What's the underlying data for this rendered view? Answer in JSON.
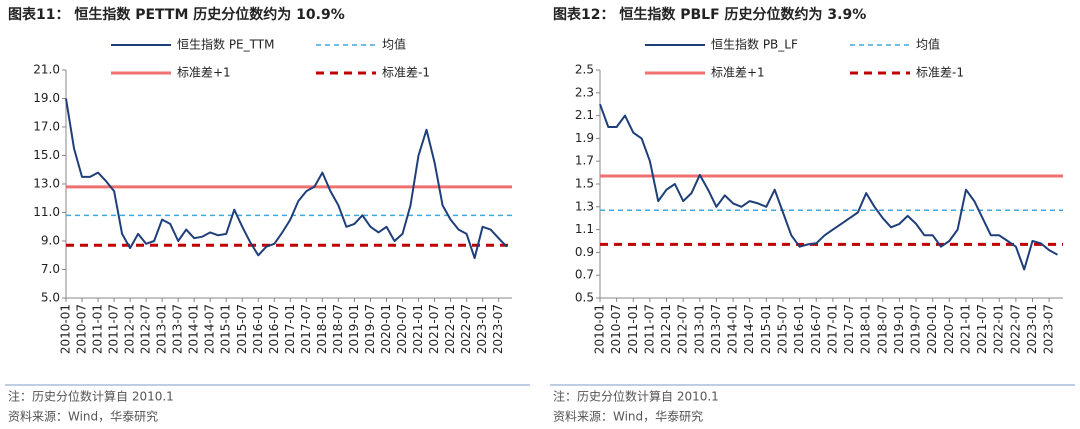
{
  "chart_data": [
    {
      "type": "line",
      "title": "图表11： 恒生指数 PETTM 历史分位数约为 10.9%",
      "notes": [
        "注：历史分位数计算自 2010.1",
        "资料来源：Wind，华泰研究"
      ],
      "x": [
        "2010-01",
        "2010-04",
        "2010-07",
        "2010-10",
        "2011-01",
        "2011-04",
        "2011-07",
        "2011-10",
        "2012-01",
        "2012-04",
        "2012-07",
        "2012-10",
        "2013-01",
        "2013-04",
        "2013-07",
        "2013-10",
        "2014-01",
        "2014-04",
        "2014-07",
        "2014-10",
        "2015-01",
        "2015-04",
        "2015-07",
        "2015-10",
        "2016-01",
        "2016-04",
        "2016-07",
        "2016-10",
        "2017-01",
        "2017-04",
        "2017-07",
        "2017-10",
        "2018-01",
        "2018-04",
        "2018-07",
        "2018-10",
        "2019-01",
        "2019-04",
        "2019-07",
        "2019-10",
        "2020-01",
        "2020-04",
        "2020-07",
        "2020-10",
        "2021-01",
        "2021-04",
        "2021-07",
        "2021-10",
        "2022-01",
        "2022-04",
        "2022-07",
        "2022-10",
        "2023-01",
        "2023-04",
        "2023-07",
        "2023-10"
      ],
      "series": [
        {
          "name": "恒生指数 PE_TTM",
          "color": "#1f3f7a",
          "values": [
            19.0,
            15.5,
            13.5,
            13.5,
            13.8,
            13.2,
            12.5,
            9.5,
            8.5,
            9.5,
            8.8,
            9.0,
            10.5,
            10.2,
            9.0,
            9.8,
            9.2,
            9.3,
            9.6,
            9.4,
            9.5,
            11.2,
            10.0,
            8.9,
            8.0,
            8.6,
            8.8,
            9.6,
            10.5,
            11.8,
            12.5,
            12.8,
            13.8,
            12.5,
            11.5,
            10.0,
            10.2,
            10.8,
            10.0,
            9.6,
            10.0,
            9.0,
            9.5,
            11.5,
            15.0,
            16.8,
            14.5,
            11.5,
            10.5,
            9.8,
            9.5,
            7.8,
            10.0,
            9.8,
            9.2,
            8.6
          ]
        }
      ],
      "reference_lines": [
        {
          "name": "均值",
          "color": "#3fa9e0",
          "dash": true,
          "value": 10.8
        },
        {
          "name": "标准差+1",
          "color": "#f07070",
          "dash": false,
          "value": 12.8
        },
        {
          "name": "标准差-1",
          "color": "#c00000",
          "dash": true,
          "value": 8.7
        }
      ],
      "xlim": [
        "2010-01",
        "2023-12"
      ],
      "xticks": [
        "2010-01",
        "2010-07",
        "2011-01",
        "2011-07",
        "2012-01",
        "2012-07",
        "2013-01",
        "2013-07",
        "2014-01",
        "2014-07",
        "2015-01",
        "2015-07",
        "2016-01",
        "2016-07",
        "2017-01",
        "2017-07",
        "2018-01",
        "2018-07",
        "2019-01",
        "2019-07",
        "2020-01",
        "2020-07",
        "2021-01",
        "2021-07",
        "2022-01",
        "2022-07",
        "2023-01",
        "2023-07"
      ],
      "ylim": [
        5,
        21
      ],
      "yticks": [
        {
          "value": 5,
          "label": "5.0"
        },
        {
          "value": 7,
          "label": "7.0"
        },
        {
          "value": 9,
          "label": "9.0"
        },
        {
          "value": 11,
          "label": "11.0"
        },
        {
          "value": 13,
          "label": "13.0"
        },
        {
          "value": 15,
          "label": "15.0"
        },
        {
          "value": 17,
          "label": "17.0"
        },
        {
          "value": 19,
          "label": "19.0"
        },
        {
          "value": 21,
          "label": "21.0"
        }
      ]
    },
    {
      "type": "line",
      "title": "图表12： 恒生指数 PBLF 历史分位数约为 3.9%",
      "notes": [
        "注：历史分位数计算自 2010.1",
        "资料来源：Wind，华泰研究"
      ],
      "x": [
        "2010-01",
        "2010-04",
        "2010-07",
        "2010-10",
        "2011-01",
        "2011-04",
        "2011-07",
        "2011-10",
        "2012-01",
        "2012-04",
        "2012-07",
        "2012-10",
        "2013-01",
        "2013-04",
        "2013-07",
        "2013-10",
        "2014-01",
        "2014-04",
        "2014-07",
        "2014-10",
        "2015-01",
        "2015-04",
        "2015-07",
        "2015-10",
        "2016-01",
        "2016-04",
        "2016-07",
        "2016-10",
        "2017-01",
        "2017-04",
        "2017-07",
        "2017-10",
        "2018-01",
        "2018-04",
        "2018-07",
        "2018-10",
        "2019-01",
        "2019-04",
        "2019-07",
        "2019-10",
        "2020-01",
        "2020-04",
        "2020-07",
        "2020-10",
        "2021-01",
        "2021-04",
        "2021-07",
        "2021-10",
        "2022-01",
        "2022-04",
        "2022-07",
        "2022-10",
        "2023-01",
        "2023-04",
        "2023-07",
        "2023-10"
      ],
      "series": [
        {
          "name": "恒生指数 PB_LF",
          "color": "#1f3f7a",
          "values": [
            2.2,
            2.0,
            2.0,
            2.1,
            1.95,
            1.9,
            1.7,
            1.35,
            1.45,
            1.5,
            1.35,
            1.42,
            1.58,
            1.45,
            1.3,
            1.4,
            1.33,
            1.3,
            1.35,
            1.33,
            1.3,
            1.45,
            1.25,
            1.05,
            0.95,
            0.97,
            0.98,
            1.05,
            1.1,
            1.15,
            1.2,
            1.25,
            1.42,
            1.3,
            1.2,
            1.12,
            1.15,
            1.22,
            1.15,
            1.05,
            1.05,
            0.95,
            1.0,
            1.1,
            1.45,
            1.35,
            1.2,
            1.05,
            1.05,
            1.0,
            0.95,
            0.75,
            1.0,
            0.98,
            0.92,
            0.88
          ]
        }
      ],
      "reference_lines": [
        {
          "name": "均值",
          "color": "#3fa9e0",
          "dash": true,
          "value": 1.27
        },
        {
          "name": "标准差+1",
          "color": "#f07070",
          "dash": false,
          "value": 1.57
        },
        {
          "name": "标准差-1",
          "color": "#c00000",
          "dash": true,
          "value": 0.97
        }
      ],
      "xlim": [
        "2010-01",
        "2023-12"
      ],
      "xticks": [
        "2010-01",
        "2010-07",
        "2011-01",
        "2011-07",
        "2012-01",
        "2012-07",
        "2013-01",
        "2013-07",
        "2014-01",
        "2014-07",
        "2015-01",
        "2015-07",
        "2016-01",
        "2016-07",
        "2017-01",
        "2017-07",
        "2018-01",
        "2018-07",
        "2019-01",
        "2019-07",
        "2020-01",
        "2020-07",
        "2021-01",
        "2021-07",
        "2022-01",
        "2022-07",
        "2023-01",
        "2023-07"
      ],
      "ylim": [
        0.5,
        2.5
      ],
      "yticks": [
        0.5,
        0.7,
        0.9,
        1.1,
        1.3,
        1.5,
        1.7,
        1.9,
        2.1,
        2.3,
        2.5
      ]
    }
  ]
}
